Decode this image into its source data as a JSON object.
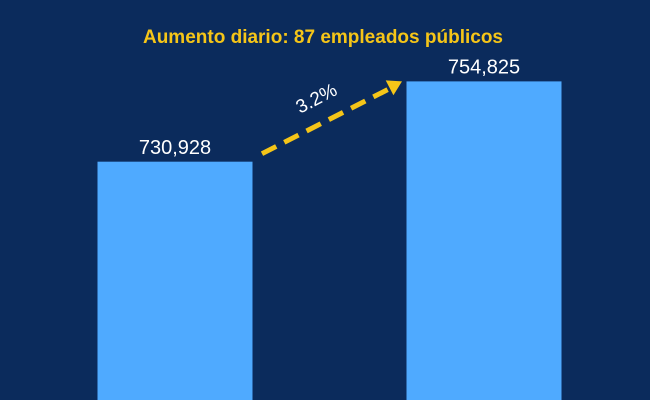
{
  "chart_data": {
    "type": "bar",
    "title": "Aumento diario: 87 empleados públicos",
    "values": [
      730928,
      754825
    ],
    "value_labels": [
      "730,928",
      "754,825"
    ],
    "color": "#4faaff",
    "ylim": [
      660000,
      760000
    ],
    "annotation": "3.2%",
    "annotation_color": "#f5c518"
  }
}
